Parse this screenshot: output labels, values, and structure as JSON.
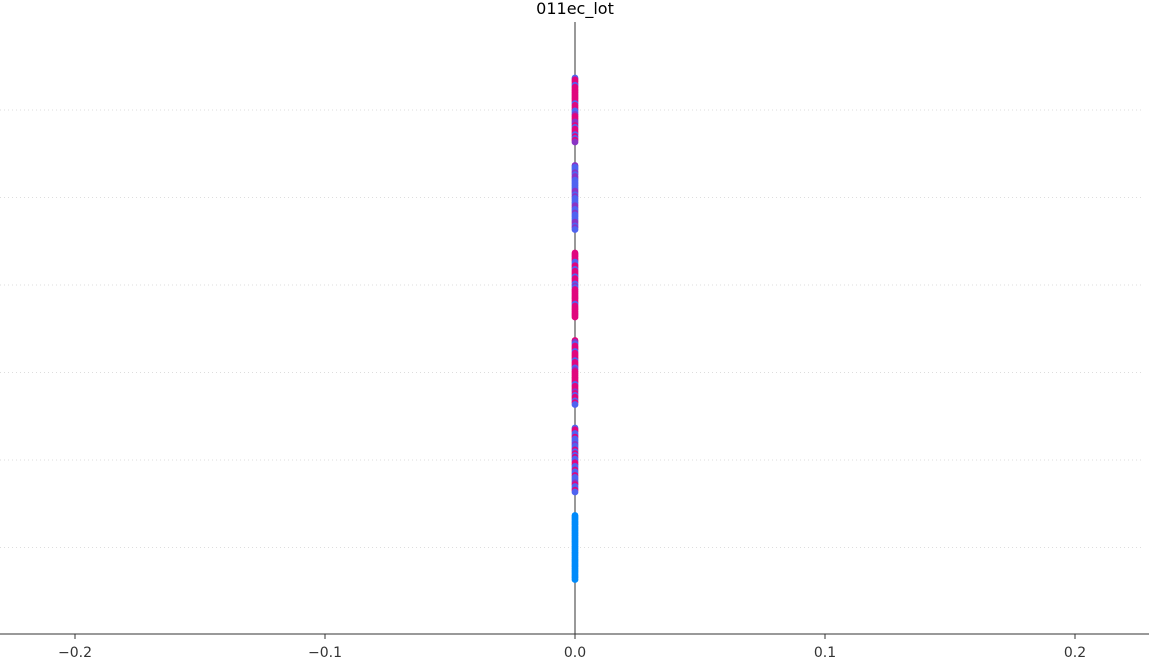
{
  "chart_data": {
    "type": "scatter",
    "title": "011ec_lot",
    "xlabel": "",
    "ylabel": "",
    "xlim": [
      -0.23,
      0.23
    ],
    "xticks": [
      -0.2,
      -0.1,
      0.0,
      0.1,
      0.2
    ],
    "xtick_labels": [
      "−0.2",
      "−0.1",
      "0.0",
      "0.1",
      "0.2"
    ],
    "zero_line": 0.0,
    "grid": "horizontal-dotted",
    "rows": [
      {
        "x": 0.0,
        "dominant_color": "#e0067e",
        "secondary_color": "#4f63f0"
      },
      {
        "x": 0.0,
        "dominant_color": "#4f63f0",
        "secondary_color": "#8a34c4"
      },
      {
        "x": 0.0,
        "dominant_color": "#e0067e",
        "secondary_color": "#4f63f0"
      },
      {
        "x": 0.0,
        "dominant_color": "#e0067e",
        "secondary_color": "#4f63f0"
      },
      {
        "x": 0.0,
        "dominant_color": "#4f63f0",
        "secondary_color": "#e0067e"
      },
      {
        "x": 0.0,
        "dominant_color": "#008bfb",
        "secondary_color": "#008bfb"
      }
    ],
    "colors": {
      "high": "#ff0052",
      "mid": "#8a34c4",
      "low": "#008bfb",
      "axis": "#333333",
      "zero_line": "#999999",
      "grid": "#dddddd"
    }
  }
}
